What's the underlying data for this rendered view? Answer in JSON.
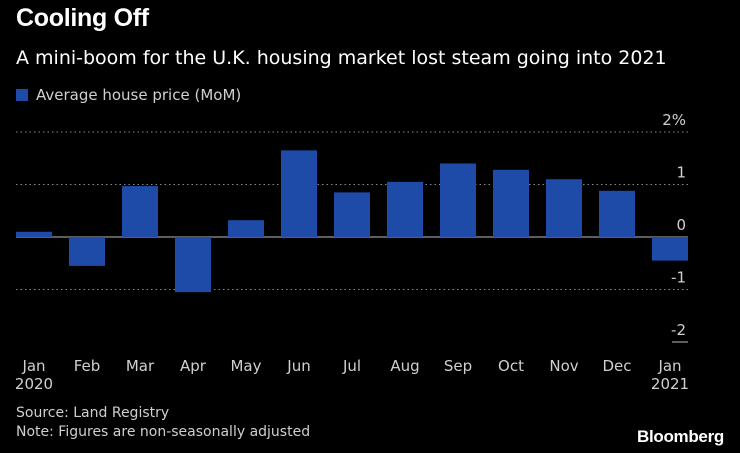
{
  "header": {
    "title": "Cooling Off",
    "subtitle": "A mini-boom for the U.K. housing market lost steam going into 2021"
  },
  "colors": {
    "bar": "#1f4ba8",
    "grid": "#8a8a8a",
    "zero_line": "#bdbdbd",
    "axis_text": "#d0d0d0"
  },
  "chart_data": {
    "type": "bar",
    "title": "Cooling Off",
    "subtitle": "A mini-boom for the U.K. housing market lost steam going into 2021",
    "categories": [
      "Jan",
      "Feb",
      "Mar",
      "Apr",
      "May",
      "Jun",
      "Jul",
      "Aug",
      "Sep",
      "Oct",
      "Nov",
      "Dec",
      "Jan"
    ],
    "year_labels": [
      "2020",
      "",
      "",
      "",
      "",
      "",
      "",
      "",
      "",
      "",
      "",
      "",
      "2021"
    ],
    "series": [
      {
        "name": "Average house price (MoM)",
        "values": [
          0.1,
          -0.55,
          0.97,
          -1.05,
          0.32,
          1.65,
          0.85,
          1.05,
          1.4,
          1.28,
          1.1,
          0.88,
          -0.45
        ]
      }
    ],
    "ylim": [
      -2,
      2
    ],
    "yticks": [
      -2,
      -1,
      0,
      1,
      2
    ],
    "ytick_labels": [
      "-2",
      "-1",
      "0",
      "1",
      "2%"
    ],
    "y_axis_side": "right",
    "grid": true,
    "legend_position": "top-left",
    "xlabel": "",
    "ylabel": ""
  },
  "footer": {
    "source": "Source: Land Registry",
    "note": "Note: Figures are non-seasonally adjusted",
    "brand": "Bloomberg"
  }
}
